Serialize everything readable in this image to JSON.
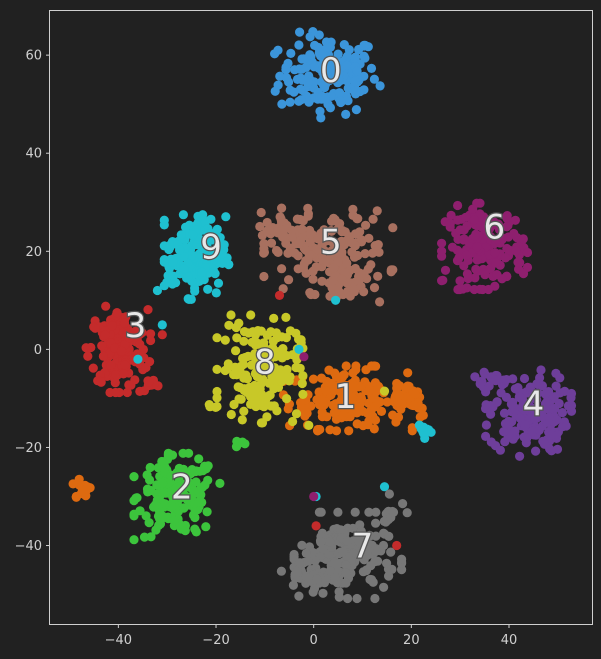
{
  "chart_data": {
    "type": "scatter",
    "title": "",
    "xlabel": "",
    "ylabel": "",
    "xlim": [
      -54,
      57
    ],
    "ylim": [
      -56,
      69
    ],
    "xticks": [
      -40,
      -20,
      0,
      20,
      40
    ],
    "yticks": [
      -40,
      -20,
      0,
      20,
      40,
      60
    ],
    "xtick_labels": [
      "−40",
      "−20",
      "0",
      "20",
      "40"
    ],
    "ytick_labels": [
      "−40",
      "−20",
      "0",
      "20",
      "40",
      "60"
    ],
    "grid": false,
    "legend": "none",
    "colors": {
      "0": "#3b95da",
      "1": "#de6a10",
      "2": "#3cc43c",
      "3": "#c42b2b",
      "4": "#6e3e9a",
      "5": "#a8705f",
      "6": "#8e1f6e",
      "7": "#777777",
      "8": "#c8c828",
      "9": "#1fc0d0"
    },
    "clusters": [
      {
        "label": "0",
        "center": [
          3,
          56
        ],
        "spread": [
          5,
          4
        ]
      },
      {
        "label": "1",
        "center": [
          7,
          -10
        ],
        "spread": [
          6,
          3
        ]
      },
      {
        "label": "2",
        "center": [
          -28,
          -30
        ],
        "spread": [
          4,
          4
        ]
      },
      {
        "label": "3",
        "center": [
          -40,
          0
        ],
        "spread": [
          3,
          4
        ]
      },
      {
        "label": "4",
        "center": [
          44,
          -13
        ],
        "spread": [
          4,
          4
        ]
      },
      {
        "label": "5",
        "center": [
          3,
          20
        ],
        "spread": [
          6,
          4
        ]
      },
      {
        "label": "6",
        "center": [
          35,
          21
        ],
        "spread": [
          4,
          4
        ]
      },
      {
        "label": "7",
        "center": [
          7,
          -42
        ],
        "spread": [
          5,
          4
        ]
      },
      {
        "label": "8",
        "center": [
          -11,
          -4
        ],
        "spread": [
          4,
          5
        ]
      },
      {
        "label": "9",
        "center": [
          -24,
          19
        ],
        "spread": [
          3,
          4
        ]
      }
    ],
    "label_positions": [
      {
        "text": "0",
        "x": 3.5,
        "y": 56.5
      },
      {
        "text": "1",
        "x": 6.5,
        "y": -10
      },
      {
        "text": "2",
        "x": -27,
        "y": -28.5
      },
      {
        "text": "3",
        "x": -36.5,
        "y": 4.5
      },
      {
        "text": "4",
        "x": 45,
        "y": -11.5
      },
      {
        "text": "5",
        "x": 3.5,
        "y": 21.5
      },
      {
        "text": "6",
        "x": 37,
        "y": 24.5
      },
      {
        "text": "7",
        "x": 10,
        "y": -40.5
      },
      {
        "text": "8",
        "x": -10,
        "y": -3
      },
      {
        "text": "9",
        "x": -21,
        "y": 20.5
      }
    ],
    "extra_groups": [
      {
        "label": "1",
        "center": [
          19,
          -10
        ],
        "spread": [
          2.5,
          2
        ],
        "n": 35
      },
      {
        "label": "1",
        "center": [
          -47.5,
          -28.5
        ],
        "spread": [
          1,
          1.2
        ],
        "n": 14
      },
      {
        "label": "5",
        "center": [
          -6,
          24
        ],
        "spread": [
          2.5,
          2
        ],
        "n": 30
      },
      {
        "label": "5",
        "center": [
          8,
          14
        ],
        "spread": [
          2.5,
          2
        ],
        "n": 30
      },
      {
        "label": "9",
        "center": [
          22.5,
          -16.5
        ],
        "spread": [
          1,
          1
        ],
        "n": 10
      },
      {
        "label": "3",
        "center": [
          -33,
          -7.5
        ],
        "spread": [
          1.5,
          0.7
        ],
        "n": 10
      },
      {
        "label": "4",
        "center": [
          36,
          -6
        ],
        "spread": [
          2,
          1
        ],
        "n": 14
      },
      {
        "label": "7",
        "center": [
          0,
          -46
        ],
        "spread": [
          3,
          2
        ],
        "n": 40
      },
      {
        "label": "7",
        "center": [
          16,
          -33
        ],
        "spread": [
          2,
          1
        ],
        "n": 10
      },
      {
        "label": "2",
        "center": [
          -15,
          -19.5
        ],
        "spread": [
          0.7,
          0.4
        ],
        "n": 5
      },
      {
        "label": "8",
        "center": [
          -21,
          -11.5
        ],
        "spread": [
          0.6,
          0.4
        ],
        "n": 3
      }
    ],
    "stray_points": [
      {
        "label": "9",
        "x": -31,
        "y": 5
      },
      {
        "label": "9",
        "x": -36,
        "y": -2
      },
      {
        "label": "9",
        "x": 4.5,
        "y": 10
      },
      {
        "label": "9",
        "x": -3,
        "y": 0
      },
      {
        "label": "9",
        "x": 0.5,
        "y": -30
      },
      {
        "label": "9",
        "x": 14.5,
        "y": -28
      },
      {
        "label": "9",
        "x": -32,
        "y": 12
      },
      {
        "label": "3",
        "x": -7,
        "y": 11
      },
      {
        "label": "3",
        "x": 0.5,
        "y": -36
      },
      {
        "label": "3",
        "x": 17,
        "y": -40
      },
      {
        "label": "3",
        "x": -31,
        "y": 3
      },
      {
        "label": "6",
        "x": -2,
        "y": -1.5
      },
      {
        "label": "6",
        "x": 0,
        "y": -30
      },
      {
        "label": "8",
        "x": 14.5,
        "y": -8.5
      },
      {
        "label": "8",
        "x": -1,
        "y": -15.5
      },
      {
        "label": "1",
        "x": 11,
        "y": -13
      },
      {
        "label": "7",
        "x": 15.5,
        "y": -29.5
      }
    ]
  }
}
